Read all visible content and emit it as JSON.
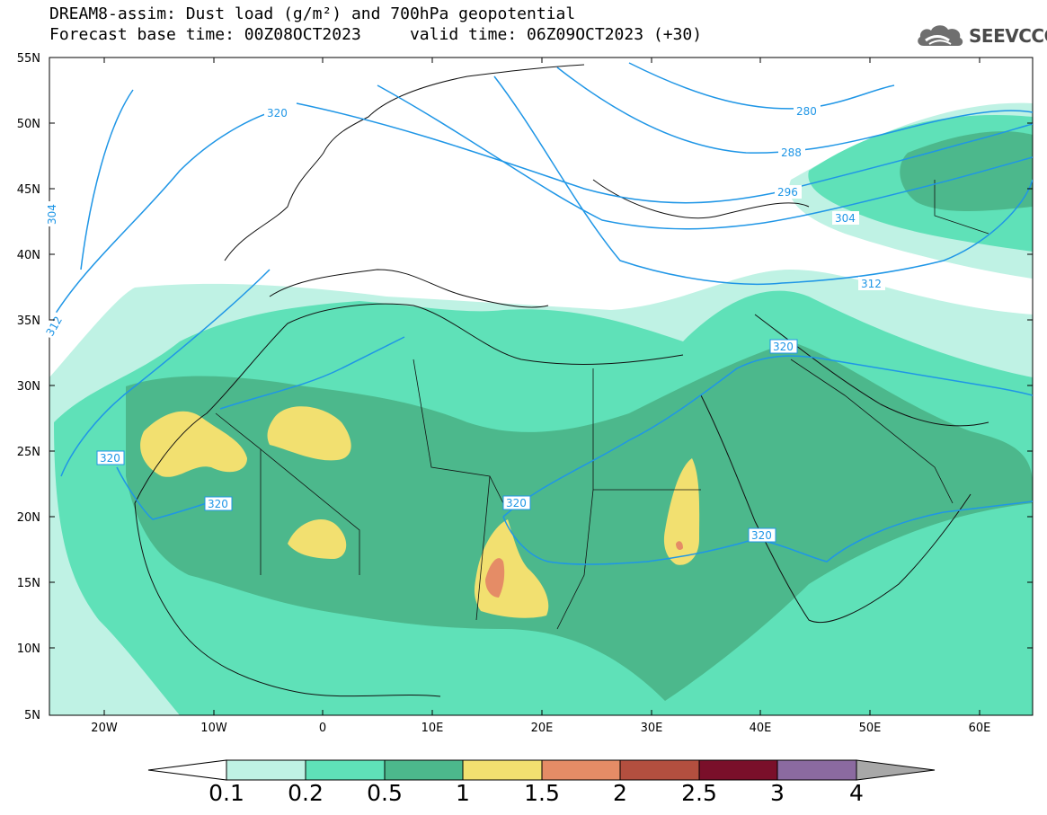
{
  "header": {
    "title_line1": "DREAM8-assim: Dust load (g/m²) and 700hPa geopotential",
    "title_line2": "Forecast base time: 00Z08OCT2023     valid time: 06Z09OCT2023 (+30)"
  },
  "logo": {
    "text": "SEEVCCC",
    "icon": "cloud-logo-icon"
  },
  "map": {
    "lat_labels": [
      "55N",
      "50N",
      "45N",
      "40N",
      "35N",
      "30N",
      "25N",
      "20N",
      "15N",
      "10N",
      "5N"
    ],
    "lon_labels": [
      "20W",
      "10W",
      "0",
      "10E",
      "20E",
      "30E",
      "40E",
      "50E",
      "60E"
    ],
    "contour_labels": [
      "280",
      "288",
      "296",
      "304",
      "312",
      "320",
      "320",
      "320",
      "320",
      "320",
      "320",
      "312",
      "304"
    ],
    "contour_color": "#1f96e6"
  },
  "colorbar": {
    "labels": [
      "0.1",
      "0.2",
      "0.5",
      "1",
      "1.5",
      "2",
      "2.5",
      "3",
      "4"
    ],
    "colors": [
      "#bff2e4",
      "#5fe1b8",
      "#4cb88c",
      "#f2e070",
      "#e58c66",
      "#b34f3f",
      "#7a0f2a",
      "#8b6aa0",
      "#a8a8a8"
    ],
    "under_color": "#ffffff",
    "over_color": "#a8a8a8"
  }
}
